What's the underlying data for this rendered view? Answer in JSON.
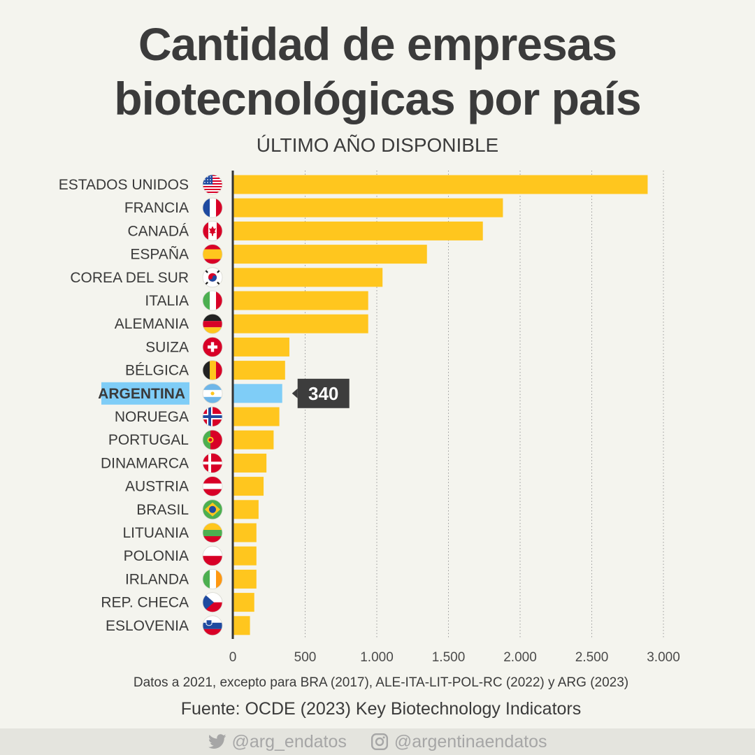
{
  "header": {
    "title_line1": "Cantidad de empresas",
    "title_line2": "biotecnológicas por país",
    "subtitle": "ÚLTIMO AÑO DISPONIBLE"
  },
  "chart_data": {
    "type": "bar",
    "orientation": "horizontal",
    "title": "Cantidad de empresas biotecnológicas por país",
    "subtitle": "ÚLTIMO AÑO DISPONIBLE",
    "categories": [
      "ESTADOS UNIDOS",
      "FRANCIA",
      "CANADÁ",
      "ESPAÑA",
      "COREA DEL SUR",
      "ITALIA",
      "ALEMANIA",
      "SUIZA",
      "BÉLGICA",
      "ARGENTINA",
      "NORUEGA",
      "PORTUGAL",
      "DINAMARCA",
      "AUSTRIA",
      "BRASIL",
      "LITUANIA",
      "POLONIA",
      "IRLANDA",
      "REP. CHECA",
      "ESLOVENIA"
    ],
    "values": [
      2890,
      1880,
      1740,
      1350,
      1040,
      940,
      940,
      390,
      360,
      340,
      320,
      280,
      230,
      210,
      175,
      160,
      160,
      160,
      145,
      115
    ],
    "highlight": "ARGENTINA",
    "highlight_label": "340",
    "xlim": [
      0,
      3000
    ],
    "x_ticks": [
      0,
      500,
      1000,
      1500,
      2000,
      2500,
      3000
    ],
    "x_tick_labels": [
      "0",
      "500",
      "1.000",
      "1.500",
      "2.000",
      "2.500",
      "3.000"
    ],
    "grid": "vertical dotted",
    "colors": {
      "bar": "#ffc61e",
      "highlight_bar": "#7fcdf7",
      "label_box": "#3d3d3d",
      "axis": "#333333"
    }
  },
  "footer": {
    "note": "Datos a 2021, excepto para BRA (2017), ALE-ITA-LIT-POL-RC (2022) y ARG (2023)",
    "source": "Fuente: OCDE (2023) Key Biotechnology Indicators",
    "twitter": "@arg_endatos",
    "instagram": "@argentinaendatos",
    "twitter_icon": "twitter-icon",
    "instagram_icon": "instagram-icon"
  }
}
